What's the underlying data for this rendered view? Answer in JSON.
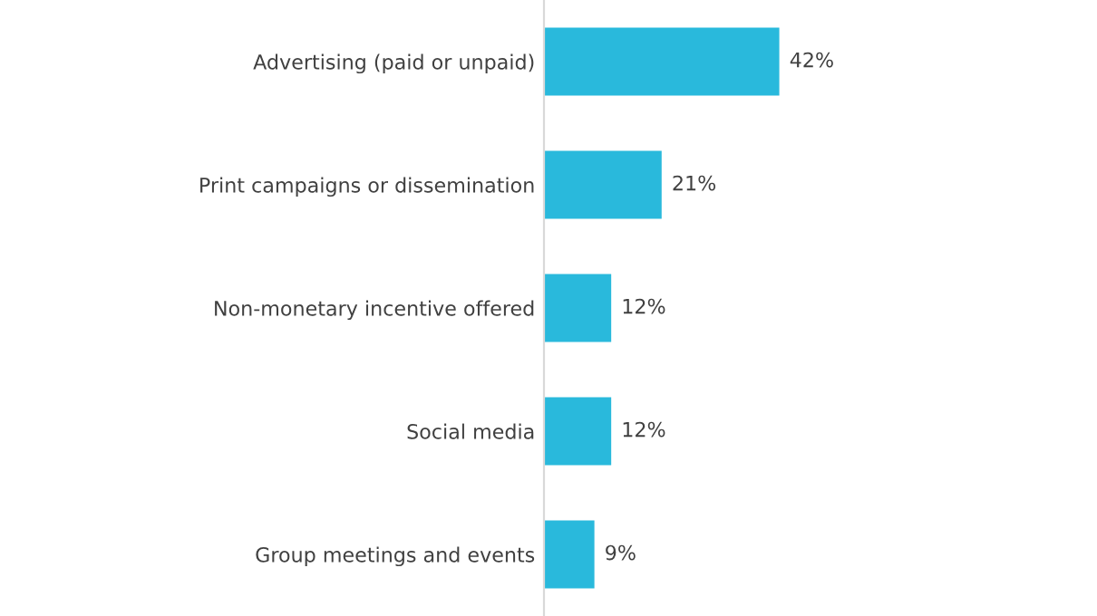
{
  "chart_data": {
    "type": "bar",
    "orientation": "horizontal",
    "categories": [
      "Advertising (paid or unpaid)",
      "Print campaigns or dissemination",
      "Non-monetary incentive offered",
      "Social media",
      "Group meetings and events"
    ],
    "values": [
      42,
      21,
      12,
      12,
      9
    ],
    "value_labels": [
      "42%",
      "21%",
      "12%",
      "12%",
      "9%"
    ],
    "color": "#29b9dc",
    "tick_labels": "y",
    "grid": false,
    "legend": false
  }
}
